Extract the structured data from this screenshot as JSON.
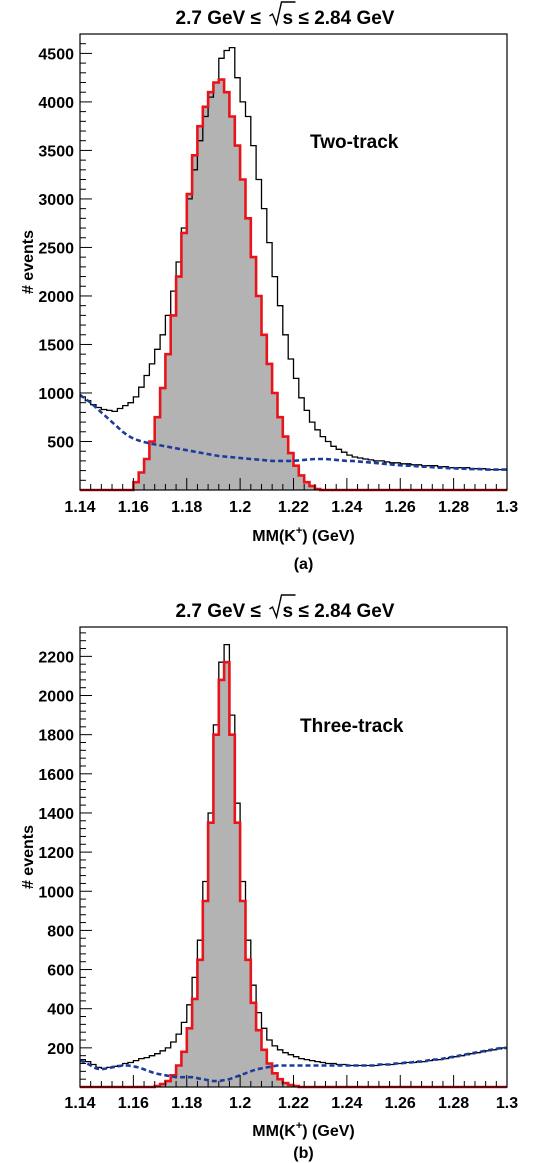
{
  "chart_data": [
    {
      "type": "line",
      "title_prefix": "2.7 GeV ≤",
      "title_sqrt": "s",
      "title_suffix": "≤ 2.84 GeV",
      "annotation": "Two-track",
      "caption": "(a)",
      "xlabel_main": "MM(K",
      "xlabel_sup": "+",
      "xlabel_end": ") (GeV)",
      "ylabel": "# events",
      "xlim": [
        1.14,
        1.3
      ],
      "ylim": [
        0,
        4700
      ],
      "xticks": [
        1.14,
        1.16,
        1.18,
        1.2,
        1.22,
        1.24,
        1.26,
        1.28,
        1.3
      ],
      "xtick_labels": [
        "1.14",
        "1.16",
        "1.18",
        "1.2",
        "1.22",
        "1.24",
        "1.26",
        "1.28",
        "1.3"
      ],
      "yticks": [
        500,
        1000,
        1500,
        2000,
        2500,
        3000,
        3500,
        4000,
        4500
      ],
      "ytick_labels": [
        "500",
        "1000",
        "1500",
        "2000",
        "2500",
        "3000",
        "3500",
        "4000",
        "4500"
      ],
      "colors": {
        "total": "#000000",
        "signal": "#e8141a",
        "fill": "#b3b3b3",
        "background": "#1c3d9e"
      },
      "x": [
        1.14,
        1.142,
        1.144,
        1.146,
        1.148,
        1.15,
        1.152,
        1.154,
        1.156,
        1.158,
        1.16,
        1.162,
        1.164,
        1.166,
        1.168,
        1.17,
        1.172,
        1.174,
        1.176,
        1.178,
        1.18,
        1.182,
        1.184,
        1.186,
        1.188,
        1.19,
        1.192,
        1.194,
        1.196,
        1.198,
        1.2,
        1.202,
        1.204,
        1.206,
        1.208,
        1.21,
        1.212,
        1.214,
        1.216,
        1.218,
        1.22,
        1.222,
        1.224,
        1.226,
        1.228,
        1.23,
        1.232,
        1.234,
        1.236,
        1.238,
        1.24,
        1.242,
        1.244,
        1.246,
        1.248,
        1.25,
        1.252,
        1.254,
        1.256,
        1.258,
        1.26,
        1.262,
        1.264,
        1.266,
        1.268,
        1.27,
        1.272,
        1.274,
        1.276,
        1.278,
        1.28,
        1.282,
        1.284,
        1.286,
        1.288,
        1.29,
        1.292,
        1.294,
        1.296,
        1.298,
        1.3
      ],
      "series": [
        {
          "role": "total",
          "style": "step-black",
          "values": [
            960,
            920,
            880,
            850,
            830,
            820,
            810,
            840,
            870,
            900,
            960,
            1060,
            1180,
            1300,
            1450,
            1600,
            1800,
            2050,
            2350,
            2700,
            3000,
            3300,
            3600,
            3850,
            4050,
            4200,
            4450,
            4530,
            4560,
            4250,
            4000,
            3850,
            3550,
            3200,
            2900,
            2550,
            2200,
            1900,
            1600,
            1350,
            1150,
            950,
            820,
            700,
            620,
            550,
            500,
            450,
            420,
            390,
            360,
            340,
            330,
            320,
            310,
            300,
            300,
            290,
            280,
            280,
            270,
            270,
            260,
            260,
            250,
            250,
            250,
            240,
            240,
            230,
            230,
            230,
            230,
            220,
            220,
            220,
            210,
            210,
            210,
            210,
            210
          ]
        },
        {
          "role": "signal",
          "style": "step-red-filled",
          "values": [
            0,
            0,
            0,
            0,
            0,
            0,
            0,
            0,
            0,
            0,
            80,
            180,
            320,
            500,
            750,
            1050,
            1400,
            1800,
            2200,
            2650,
            3050,
            3450,
            3750,
            3950,
            4100,
            4200,
            4230,
            4100,
            3850,
            3550,
            3200,
            2800,
            2400,
            2000,
            1600,
            1300,
            1000,
            750,
            550,
            380,
            250,
            150,
            80,
            40,
            10,
            0,
            0,
            0,
            0,
            0,
            0,
            0,
            0,
            0,
            0,
            0,
            0,
            0,
            0,
            0,
            0,
            0,
            0,
            0,
            0,
            0,
            0,
            0,
            0,
            0,
            0,
            0,
            0,
            0,
            0,
            0,
            0,
            0,
            0,
            0,
            0
          ]
        },
        {
          "role": "background",
          "style": "dashed-blue",
          "values": [
            980,
            940,
            900,
            850,
            800,
            750,
            700,
            650,
            600,
            560,
            530,
            510,
            495,
            480,
            470,
            460,
            450,
            440,
            430,
            420,
            410,
            400,
            390,
            380,
            370,
            360,
            350,
            345,
            340,
            335,
            330,
            325,
            320,
            315,
            310,
            305,
            300,
            300,
            300,
            300,
            300,
            305,
            310,
            315,
            320,
            320,
            320,
            315,
            310,
            305,
            300,
            300,
            295,
            290,
            285,
            280,
            275,
            270,
            265,
            260,
            255,
            250,
            250,
            245,
            240,
            240,
            235,
            230,
            230,
            225,
            225,
            220,
            220,
            215,
            215,
            215,
            210,
            210,
            210,
            210,
            210
          ]
        }
      ]
    },
    {
      "type": "line",
      "title_prefix": "2.7 GeV ≤",
      "title_sqrt": "s",
      "title_suffix": "≤ 2.84 GeV",
      "annotation": "Three-track",
      "caption": "(b)",
      "xlabel_main": "MM(K",
      "xlabel_sup": "+",
      "xlabel_end": ") (GeV)",
      "ylabel": "# events",
      "xlim": [
        1.14,
        1.3
      ],
      "ylim": [
        0,
        2350
      ],
      "xticks": [
        1.14,
        1.16,
        1.18,
        1.2,
        1.22,
        1.24,
        1.26,
        1.28,
        1.3
      ],
      "xtick_labels": [
        "1.14",
        "1.16",
        "1.18",
        "1.2",
        "1.22",
        "1.24",
        "1.26",
        "1.28",
        "1.3"
      ],
      "yticks": [
        200,
        400,
        600,
        800,
        1000,
        1200,
        1400,
        1600,
        1800,
        2000,
        2200
      ],
      "ytick_labels": [
        "200",
        "400",
        "600",
        "800",
        "1000",
        "1200",
        "1400",
        "1600",
        "1800",
        "2000",
        "2200"
      ],
      "colors": {
        "total": "#000000",
        "signal": "#e8141a",
        "fill": "#b3b3b3",
        "background": "#1c3d9e"
      },
      "x": [
        1.14,
        1.142,
        1.144,
        1.146,
        1.148,
        1.15,
        1.152,
        1.154,
        1.156,
        1.158,
        1.16,
        1.162,
        1.164,
        1.166,
        1.168,
        1.17,
        1.172,
        1.174,
        1.176,
        1.178,
        1.18,
        1.182,
        1.184,
        1.186,
        1.188,
        1.19,
        1.192,
        1.194,
        1.196,
        1.198,
        1.2,
        1.202,
        1.204,
        1.206,
        1.208,
        1.21,
        1.212,
        1.214,
        1.216,
        1.218,
        1.22,
        1.222,
        1.224,
        1.226,
        1.228,
        1.23,
        1.232,
        1.234,
        1.236,
        1.238,
        1.24,
        1.242,
        1.244,
        1.246,
        1.248,
        1.25,
        1.252,
        1.254,
        1.256,
        1.258,
        1.26,
        1.262,
        1.264,
        1.266,
        1.268,
        1.27,
        1.272,
        1.274,
        1.276,
        1.278,
        1.28,
        1.282,
        1.284,
        1.286,
        1.288,
        1.29,
        1.292,
        1.294,
        1.296,
        1.298,
        1.3
      ],
      "series": [
        {
          "role": "total",
          "style": "step-black",
          "values": [
            140,
            130,
            115,
            100,
            95,
            100,
            105,
            110,
            120,
            125,
            135,
            145,
            150,
            160,
            170,
            185,
            200,
            230,
            270,
            330,
            420,
            560,
            750,
            1050,
            1400,
            1850,
            2170,
            2260,
            1900,
            1450,
            1050,
            750,
            520,
            380,
            300,
            240,
            210,
            190,
            175,
            165,
            155,
            145,
            140,
            135,
            130,
            125,
            120,
            120,
            115,
            115,
            110,
            110,
            110,
            110,
            110,
            110,
            115,
            115,
            115,
            120,
            120,
            125,
            125,
            130,
            130,
            135,
            140,
            140,
            145,
            150,
            155,
            160,
            165,
            170,
            175,
            180,
            185,
            190,
            195,
            200,
            200
          ]
        },
        {
          "role": "signal",
          "style": "step-red-filled",
          "values": [
            0,
            0,
            0,
            0,
            0,
            0,
            0,
            0,
            0,
            0,
            0,
            0,
            0,
            0,
            5,
            15,
            30,
            60,
            110,
            180,
            300,
            450,
            650,
            950,
            1350,
            1800,
            2080,
            2170,
            1800,
            1350,
            950,
            650,
            430,
            290,
            190,
            120,
            70,
            40,
            20,
            10,
            5,
            0,
            0,
            0,
            0,
            0,
            0,
            0,
            0,
            0,
            0,
            0,
            0,
            0,
            0,
            0,
            0,
            0,
            0,
            0,
            0,
            0,
            0,
            0,
            0,
            0,
            0,
            0,
            0,
            0,
            0,
            0,
            0,
            0,
            0,
            0,
            0,
            0,
            0,
            0,
            0
          ]
        },
        {
          "role": "background",
          "style": "dashed-blue",
          "values": [
            135,
            125,
            110,
            95,
            90,
            95,
            100,
            105,
            110,
            110,
            105,
            100,
            90,
            80,
            70,
            65,
            60,
            55,
            50,
            50,
            50,
            50,
            45,
            40,
            35,
            30,
            30,
            35,
            40,
            50,
            60,
            70,
            80,
            90,
            95,
            100,
            105,
            110,
            110,
            110,
            110,
            110,
            110,
            110,
            110,
            110,
            110,
            110,
            110,
            110,
            110,
            110,
            110,
            110,
            110,
            110,
            115,
            115,
            115,
            120,
            120,
            125,
            125,
            130,
            130,
            135,
            140,
            140,
            145,
            150,
            155,
            160,
            165,
            170,
            175,
            180,
            185,
            190,
            195,
            200,
            200
          ]
        }
      ]
    }
  ]
}
